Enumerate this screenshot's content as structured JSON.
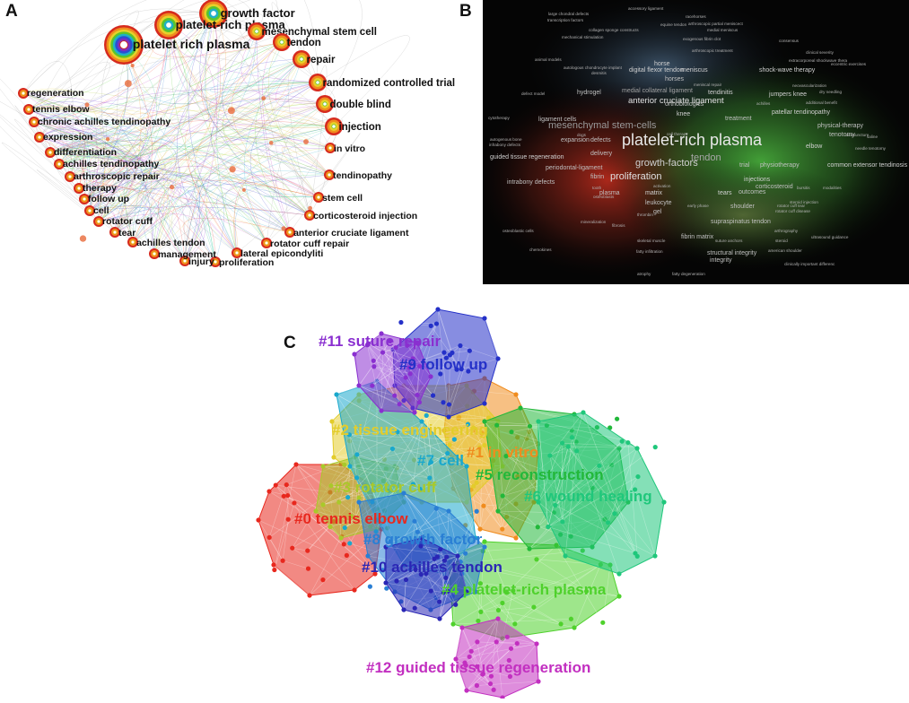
{
  "figure": {
    "panel_letters": [
      "A",
      "B",
      "C"
    ]
  },
  "panel_a": {
    "nodes": [
      {
        "label": "growth factor",
        "size": "large"
      },
      {
        "label": "platelet-rich plasma",
        "size": "large"
      },
      {
        "label": "platelet rich plasma",
        "size": "xlarge"
      },
      {
        "label": "mesenchymal stem cell",
        "size": "medium"
      },
      {
        "label": "tendon",
        "size": "medium"
      },
      {
        "label": "repair",
        "size": "medium"
      },
      {
        "label": "randomized controlled trial",
        "size": "medium"
      },
      {
        "label": "double blind",
        "size": "medium"
      },
      {
        "label": "injection",
        "size": "medium"
      },
      {
        "label": "in vitro",
        "size": "small"
      },
      {
        "label": "tendinopathy",
        "size": "small"
      },
      {
        "label": "stem cell",
        "size": "small"
      },
      {
        "label": "corticosteroid injection",
        "size": "small"
      },
      {
        "label": "anterior cruciate ligament",
        "size": "small"
      },
      {
        "label": "rotator cuff repair",
        "size": "small"
      },
      {
        "label": "lateral epicondyliti",
        "size": "small"
      },
      {
        "label": "proliferation",
        "size": "small"
      },
      {
        "label": "injury",
        "size": "small"
      },
      {
        "label": "management",
        "size": "small"
      },
      {
        "label": "achilles tendon",
        "size": "small"
      },
      {
        "label": "tear",
        "size": "small"
      },
      {
        "label": "rotator cuff",
        "size": "small"
      },
      {
        "label": "cell",
        "size": "small"
      },
      {
        "label": "follow up",
        "size": "small"
      },
      {
        "label": "therapy",
        "size": "small"
      },
      {
        "label": "arthroscopic repair",
        "size": "small"
      },
      {
        "label": "achilles tendinopathy",
        "size": "small"
      },
      {
        "label": "differentiation",
        "size": "small"
      },
      {
        "label": "expression",
        "size": "small"
      },
      {
        "label": "chronic achilles tendinopathy",
        "size": "small"
      },
      {
        "label": "tennis elbow",
        "size": "small"
      },
      {
        "label": "regeneration",
        "size": "small"
      }
    ]
  },
  "panel_b": {
    "terms": [
      {
        "t": "platelet-rich plasma",
        "lvl": 5,
        "c": "#e8e8e8"
      },
      {
        "t": "mesenchymal stem-cells",
        "lvl": 3,
        "c": "#9a9a9a"
      },
      {
        "t": "growth-factors",
        "lvl": 3,
        "c": "#d0d0d0"
      },
      {
        "t": "tendon",
        "lvl": 3,
        "c": "#a8a8a8"
      },
      {
        "t": "proliferation",
        "lvl": 3,
        "c": "#e0e0e0"
      },
      {
        "t": "anterior cruciate ligament",
        "lvl": 2,
        "c": "#e0e0e0"
      },
      {
        "t": "medial collateral ligament",
        "lvl": 1,
        "c": "#a0a0a0"
      },
      {
        "t": "digital flexor tendon",
        "lvl": 1,
        "c": "#d0d0d0"
      },
      {
        "t": "shock-wave therapy",
        "lvl": 1,
        "c": "#d0d0d0"
      },
      {
        "t": "jumpers knee",
        "lvl": 1,
        "c": "#d0d0d0"
      },
      {
        "t": "tendinitis",
        "lvl": 1,
        "c": "#d0d0d0"
      },
      {
        "t": "patellar tendinopathy",
        "lvl": 1,
        "c": "#d0d0d0"
      },
      {
        "t": "knee",
        "lvl": 1,
        "c": "#d0d0d0"
      },
      {
        "t": "injections",
        "lvl": 1,
        "c": "#d0d0d0"
      },
      {
        "t": "horse",
        "lvl": 1,
        "c": "#d0d0d0"
      },
      {
        "t": "horses",
        "lvl": 1,
        "c": "#c0c0c0"
      },
      {
        "t": "meniscus",
        "lvl": 1,
        "c": "#d0d0d0"
      },
      {
        "t": "orthobiologics",
        "lvl": 1,
        "c": "#c0c0c0"
      },
      {
        "t": "treatment",
        "lvl": 1,
        "c": "#c0c0c0"
      },
      {
        "t": "elbow",
        "lvl": 1,
        "c": "#d0d0d0"
      },
      {
        "t": "physical-therapy",
        "lvl": 1,
        "c": "#c0c0c0"
      },
      {
        "t": "tenotomy",
        "lvl": 1,
        "c": "#c0c0c0"
      },
      {
        "t": "common extensor tendinosis",
        "lvl": 1,
        "c": "#d0d0d0"
      },
      {
        "t": "physiotherapy",
        "lvl": 1,
        "c": "#c0c0c0"
      },
      {
        "t": "trial",
        "lvl": 1,
        "c": "#c0c0c0"
      },
      {
        "t": "corticosteroid",
        "lvl": 1,
        "c": "#c0c0c0"
      },
      {
        "t": "outcomes",
        "lvl": 1,
        "c": "#c0c0c0"
      },
      {
        "t": "tears",
        "lvl": 1,
        "c": "#d0d0d0"
      },
      {
        "t": "matrix",
        "lvl": 1,
        "c": "#d0d0d0"
      },
      {
        "t": "plasma",
        "lvl": 1,
        "c": "#c0c0c0"
      },
      {
        "t": "fibrin",
        "lvl": 1,
        "c": "#c0c0c0"
      },
      {
        "t": "delivery",
        "lvl": 1,
        "c": "#c0c0c0"
      },
      {
        "t": "defects",
        "lvl": 1,
        "c": "#c0c0c0"
      },
      {
        "t": "expansion",
        "lvl": 1,
        "c": "#c0c0c0"
      },
      {
        "t": "guided tissue regeneration",
        "lvl": 1,
        "c": "#d0d0d0"
      },
      {
        "t": "periodontal-ligament",
        "lvl": 1,
        "c": "#c0c0c0"
      },
      {
        "t": "intrabony defects",
        "lvl": 1,
        "c": "#c0c0c0"
      },
      {
        "t": "ligament cells",
        "lvl": 1,
        "c": "#c0c0c0"
      },
      {
        "t": "hydrogel",
        "lvl": 1,
        "c": "#c0c0c0"
      },
      {
        "t": "leukocyte",
        "lvl": 1,
        "c": "#c0c0c0"
      },
      {
        "t": "gel",
        "lvl": 1,
        "c": "#c0c0c0"
      },
      {
        "t": "fibrin matrix",
        "lvl": 1,
        "c": "#c0c0c0"
      },
      {
        "t": "supraspinatus tendon",
        "lvl": 1,
        "c": "#c0c0c0"
      },
      {
        "t": "shoulder",
        "lvl": 1,
        "c": "#c0c0c0"
      },
      {
        "t": "structural integrity",
        "lvl": 1,
        "c": "#c0c0c0"
      },
      {
        "t": "integrity",
        "lvl": 1,
        "c": "#c0c0c0"
      },
      {
        "t": "rotator cuff tear",
        "lvl": 0,
        "c": "#b0b0b0"
      },
      {
        "t": "steroid injection",
        "lvl": 0,
        "c": "#b0b0b0"
      },
      {
        "t": "rotator cuff disease",
        "lvl": 0,
        "c": "#b0b0b0"
      },
      {
        "t": "neovascularization",
        "lvl": 0,
        "c": "#b0b0b0"
      },
      {
        "t": "dry needling",
        "lvl": 0,
        "c": "#b0b0b0"
      },
      {
        "t": "acupuncture",
        "lvl": 0,
        "c": "#b0b0b0"
      },
      {
        "t": "saline",
        "lvl": 0,
        "c": "#b0b0b0"
      },
      {
        "t": "needle tenotomy",
        "lvl": 0,
        "c": "#b0b0b0"
      },
      {
        "t": "bursitis",
        "lvl": 0,
        "c": "#b0b0b0"
      },
      {
        "t": "modalities",
        "lvl": 0,
        "c": "#b0b0b0"
      },
      {
        "t": "steroid",
        "lvl": 0,
        "c": "#b0b0b0"
      },
      {
        "t": "ultrasound guidance",
        "lvl": 0,
        "c": "#b0b0b0"
      },
      {
        "t": "arthrography",
        "lvl": 0,
        "c": "#b0b0b0"
      },
      {
        "t": "american shoulder",
        "lvl": 0,
        "c": "#b0b0b0"
      },
      {
        "t": "clinically important differenc",
        "lvl": 0,
        "c": "#b0b0b0"
      },
      {
        "t": "accessory ligament",
        "lvl": 0,
        "c": "#b0b0b0"
      },
      {
        "t": "large chondral defects",
        "lvl": 0,
        "c": "#b0b0b0"
      },
      {
        "t": "racehorses",
        "lvl": 0,
        "c": "#b0b0b0"
      },
      {
        "t": "transcription factors",
        "lvl": 0,
        "c": "#b0b0b0"
      },
      {
        "t": "arthroscopic partial meniscect",
        "lvl": 0,
        "c": "#b0b0b0"
      },
      {
        "t": "collagen sponge constructs",
        "lvl": 0,
        "c": "#b0b0b0"
      },
      {
        "t": "equine tendon",
        "lvl": 0,
        "c": "#b0b0b0"
      },
      {
        "t": "medial meniscus",
        "lvl": 0,
        "c": "#b0b0b0"
      },
      {
        "t": "mechanical stimulation",
        "lvl": 0,
        "c": "#b0b0b0"
      },
      {
        "t": "exogenous fibrin clot",
        "lvl": 0,
        "c": "#b0b0b0"
      },
      {
        "t": "consensus",
        "lvl": 0,
        "c": "#b0b0b0"
      },
      {
        "t": "clinical severity",
        "lvl": 0,
        "c": "#b0b0b0"
      },
      {
        "t": "eccentric exercises",
        "lvl": 0,
        "c": "#b0b0b0"
      },
      {
        "t": "extracorporeal shockwave thera",
        "lvl": 0,
        "c": "#b0b0b0"
      },
      {
        "t": "autologous chondrocyte implant",
        "lvl": 0,
        "c": "#b0b0b0"
      },
      {
        "t": "animal models",
        "lvl": 0,
        "c": "#b0b0b0"
      },
      {
        "t": "arthroscopic treatment",
        "lvl": 0,
        "c": "#b0b0b0"
      },
      {
        "t": "desmitis",
        "lvl": 0,
        "c": "#b0b0b0"
      },
      {
        "t": "meniscal repair",
        "lvl": 0,
        "c": "#b0b0b0"
      },
      {
        "t": "achilles",
        "lvl": 0,
        "c": "#b0b0b0"
      },
      {
        "t": "additional benefit",
        "lvl": 0,
        "c": "#b0b0b0"
      },
      {
        "t": "cell therapy",
        "lvl": 0,
        "c": "#b0b0b0"
      },
      {
        "t": "defect model",
        "lvl": 0,
        "c": "#b0b0b0"
      },
      {
        "t": "dogs",
        "lvl": 0,
        "c": "#b0b0b0"
      },
      {
        "t": "cytotherapy",
        "lvl": 0,
        "c": "#b0b0b0"
      },
      {
        "t": "autogenous bone",
        "lvl": 0,
        "c": "#b0b0b0"
      },
      {
        "t": "infrabony defects",
        "lvl": 0,
        "c": "#b0b0b0"
      },
      {
        "t": "tooth",
        "lvl": 0,
        "c": "#b0b0b0"
      },
      {
        "t": "osteoblasts",
        "lvl": 0,
        "c": "#b0b0b0"
      },
      {
        "t": "activation",
        "lvl": 0,
        "c": "#b0b0b0"
      },
      {
        "t": "thrombin",
        "lvl": 0,
        "c": "#b0b0b0"
      },
      {
        "t": "skeletal muscle",
        "lvl": 0,
        "c": "#b0b0b0"
      },
      {
        "t": "fatty infiltration",
        "lvl": 0,
        "c": "#b0b0b0"
      },
      {
        "t": "fatty degeneration",
        "lvl": 0,
        "c": "#b0b0b0"
      },
      {
        "t": "atrophy",
        "lvl": 0,
        "c": "#b0b0b0"
      },
      {
        "t": "chemokines",
        "lvl": 0,
        "c": "#b0b0b0"
      },
      {
        "t": "fibrosis",
        "lvl": 0,
        "c": "#b0b0b0"
      },
      {
        "t": "early phase",
        "lvl": 0,
        "c": "#b0b0b0"
      },
      {
        "t": "suture anchors",
        "lvl": 0,
        "c": "#b0b0b0"
      },
      {
        "t": "mineralization",
        "lvl": 0,
        "c": "#b0b0b0"
      },
      {
        "t": "osteoblastic cells",
        "lvl": 0,
        "c": "#b0b0b0"
      }
    ]
  },
  "panel_c": {
    "clusters": [
      {
        "label": "#0 tennis elbow",
        "color": "#e8281e"
      },
      {
        "label": "#1 in vitro",
        "color": "#f08c1e"
      },
      {
        "label": "#2 tissue engineering",
        "color": "#e3cc2a"
      },
      {
        "label": "#3 rotator cuff",
        "color": "#a9c92a"
      },
      {
        "label": "#4 platelet-rich plasma",
        "color": "#4fd12c"
      },
      {
        "label": "#5 reconstruction",
        "color": "#22b83a"
      },
      {
        "label": "#6 wound healing",
        "color": "#1fc77b"
      },
      {
        "label": "#7 cell",
        "color": "#19a8cc"
      },
      {
        "label": "#8 growth factor",
        "color": "#2a7fd4"
      },
      {
        "label": "#9 follow up",
        "color": "#2430c8"
      },
      {
        "label": "#10 achilles tendon",
        "color": "#2a26b5"
      },
      {
        "label": "#11 suture repair",
        "color": "#8a2fd0"
      },
      {
        "label": "#12 guided tissue regeneration",
        "color": "#c22fc0"
      }
    ]
  }
}
